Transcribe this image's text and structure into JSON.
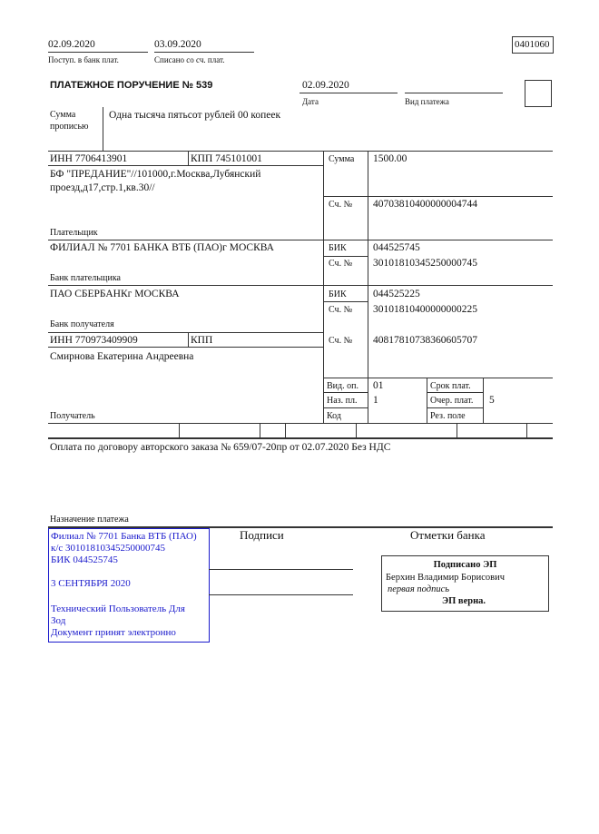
{
  "header": {
    "received_date": "02.09.2020",
    "received_label": "Поступ. в банк плат.",
    "debited_date": "03.09.2020",
    "debited_label": "Списано со сч. плат.",
    "form_code": "0401060",
    "title": "ПЛАТЕЖНОЕ ПОРУЧЕНИЕ № 539",
    "date": "02.09.2020",
    "date_label": "Дата",
    "payment_type": "",
    "payment_type_label": "Вид платежа"
  },
  "amount_words": {
    "label_1": "Сумма",
    "label_2": "прописью",
    "value": "Одна тысяча пятьсот рублей 00 копеек"
  },
  "payer": {
    "inn": "ИНН 7706413901",
    "kpp": "КПП 745101001",
    "name_1": "БФ \"ПРЕДАНИЕ\"//101000,г.Москва,Лубянский",
    "name_2": "проезд,д17,стр.1,кв.30//",
    "label": "Плательщик",
    "amount_label": "Сумма",
    "amount": "1500.00",
    "account_label": "Сч. №",
    "account": "40703810400000004744"
  },
  "payer_bank": {
    "name": "ФИЛИАЛ № 7701 БАНКА ВТБ (ПАО)г МОСКВА",
    "label": "Банк плательщика",
    "bik_label": "БИК",
    "bik": "044525745",
    "account_label": "Сч. №",
    "account": "30101810345250000745"
  },
  "payee_bank": {
    "name": "ПАО СБЕРБАНКг МОСКВА",
    "label": "Банк получателя",
    "bik_label": "БИК",
    "bik": "044525225",
    "account_label": "Сч. №",
    "account": "30101810400000000225"
  },
  "payee": {
    "inn": "ИНН 770973409909",
    "kpp": "КПП",
    "name": "Смирнова Екатерина Андреевна",
    "label": "Получатель",
    "account_label": "Сч. №",
    "account": "40817810738360605707"
  },
  "codes": {
    "op_type_label": "Вид. оп.",
    "op_type": "01",
    "purpose_code_label": "Наз. пл.",
    "purpose_code": "1",
    "code_label": "Код",
    "term_label": "Срок плат.",
    "priority_label": "Очер. плат.",
    "priority": "5",
    "reserve_label": "Рез. поле"
  },
  "purpose": {
    "text": "Оплата по договору авторского заказа № 659/07-20пр от 02.07.2020 Без НДС",
    "label": "Назначение платежа"
  },
  "stamp": {
    "color": "#1a1acc",
    "lines": [
      "Филиал № 7701 Банка ВТБ (ПАО)",
      "к/с 30101810345250000745",
      "БИК 044525745",
      "3 СЕНТЯБРЯ 2020",
      "Технический Пользователь Для",
      "Зод",
      "Документ принят электронно"
    ]
  },
  "signatures": {
    "label": "Подписи"
  },
  "bank_marks": {
    "label": "Отметки банка",
    "signed": "Подписано ЭП",
    "signer": "Берхин Владимир Борисович",
    "signature_role": "первая подпись",
    "verified": "ЭП верна."
  }
}
